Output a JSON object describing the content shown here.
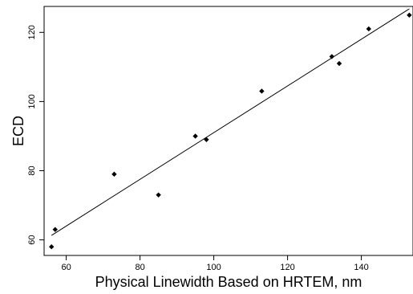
{
  "chart_data": {
    "type": "scatter",
    "xlabel": "Physical Linewidth Based on HRTEM, nm",
    "ylabel": "ECD",
    "xlim": [
      54,
      154
    ],
    "ylim": [
      55.5,
      127.5
    ],
    "x_ticks": [
      60,
      80,
      100,
      120,
      140
    ],
    "y_ticks": [
      60,
      80,
      100,
      120
    ],
    "grid": false,
    "legend": "none",
    "marker": "diamond",
    "series": [
      {
        "points": [
          {
            "x": 56,
            "y": 58
          },
          {
            "x": 57,
            "y": 63
          },
          {
            "x": 73,
            "y": 79
          },
          {
            "x": 85,
            "y": 73
          },
          {
            "x": 95,
            "y": 90
          },
          {
            "x": 98,
            "y": 89
          },
          {
            "x": 113,
            "y": 103
          },
          {
            "x": 132,
            "y": 113
          },
          {
            "x": 134,
            "y": 111
          },
          {
            "x": 142,
            "y": 121
          },
          {
            "x": 153,
            "y": 125
          }
        ]
      }
    ],
    "fit_line": {
      "x": [
        56,
        153
      ],
      "y": [
        61.3,
        126.8
      ]
    }
  }
}
